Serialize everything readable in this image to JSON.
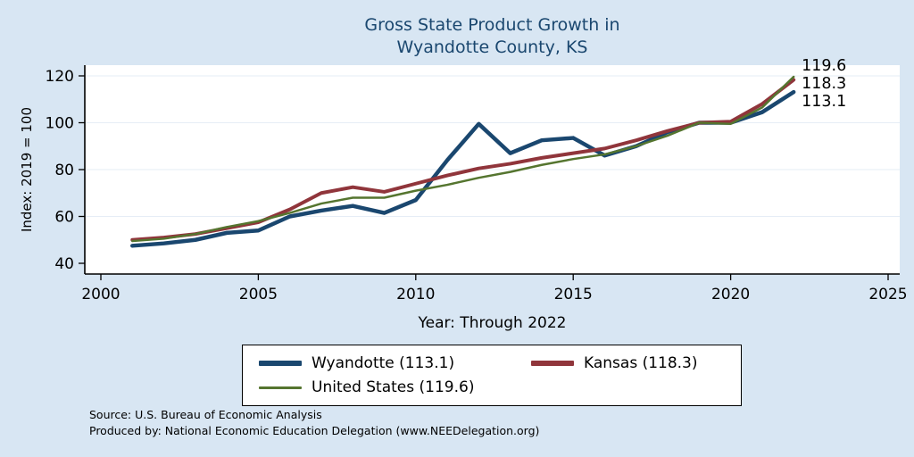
{
  "chart_data": {
    "type": "line",
    "title": "Gross State Product Growth in Wyandotte County, KS",
    "title_lines": [
      "Gross State Product Growth in",
      "Wyandotte County, KS"
    ],
    "xlabel": "Year: Through 2022",
    "ylabel": "Index: 2019 = 100",
    "xlim": [
      2000,
      2025
    ],
    "ylim": [
      40,
      120
    ],
    "xticks": [
      2000,
      2005,
      2010,
      2015,
      2020,
      2025
    ],
    "yticks": [
      40,
      60,
      80,
      100,
      120
    ],
    "legend_position": "bottom",
    "grid": false,
    "x": [
      2001,
      2002,
      2003,
      2004,
      2005,
      2006,
      2007,
      2008,
      2009,
      2010,
      2011,
      2012,
      2013,
      2014,
      2015,
      2016,
      2017,
      2018,
      2019,
      2020,
      2021,
      2022
    ],
    "series": [
      {
        "name": "Wyandotte",
        "legend_label": "Wyandotte (113.1)",
        "end_label": "113.1",
        "color": "#1a476f",
        "values": [
          47.5,
          48.5,
          50,
          53,
          54,
          60,
          62.5,
          64.5,
          61.5,
          67,
          84,
          99.5,
          87,
          92.5,
          93.5,
          86,
          90,
          96,
          100,
          100,
          104.5,
          113.1
        ]
      },
      {
        "name": "Kansas",
        "legend_label": "Kansas (118.3)",
        "end_label": "118.3",
        "color": "#90353b",
        "values": [
          50,
          51,
          52.5,
          55,
          57.5,
          63,
          70,
          72.5,
          70.5,
          74,
          77.5,
          80.5,
          82.5,
          85,
          87,
          89,
          92.5,
          96.5,
          100,
          100.5,
          108,
          118.3
        ]
      },
      {
        "name": "United States",
        "legend_label": "United States (119.6)",
        "end_label": "119.6",
        "color": "#55752f",
        "values": [
          49.5,
          50.5,
          52.5,
          55.5,
          58,
          61.5,
          65.5,
          68,
          68,
          71,
          73.5,
          76.5,
          79,
          82,
          84.5,
          86.5,
          90,
          94.5,
          100,
          99.5,
          106.5,
          119.6
        ]
      }
    ]
  },
  "footer": {
    "line1": "Source: U.S. Bureau of Economic Analysis",
    "line2": "Produced by: National Economic Education Delegation (www.NEEDelegation.org)"
  }
}
